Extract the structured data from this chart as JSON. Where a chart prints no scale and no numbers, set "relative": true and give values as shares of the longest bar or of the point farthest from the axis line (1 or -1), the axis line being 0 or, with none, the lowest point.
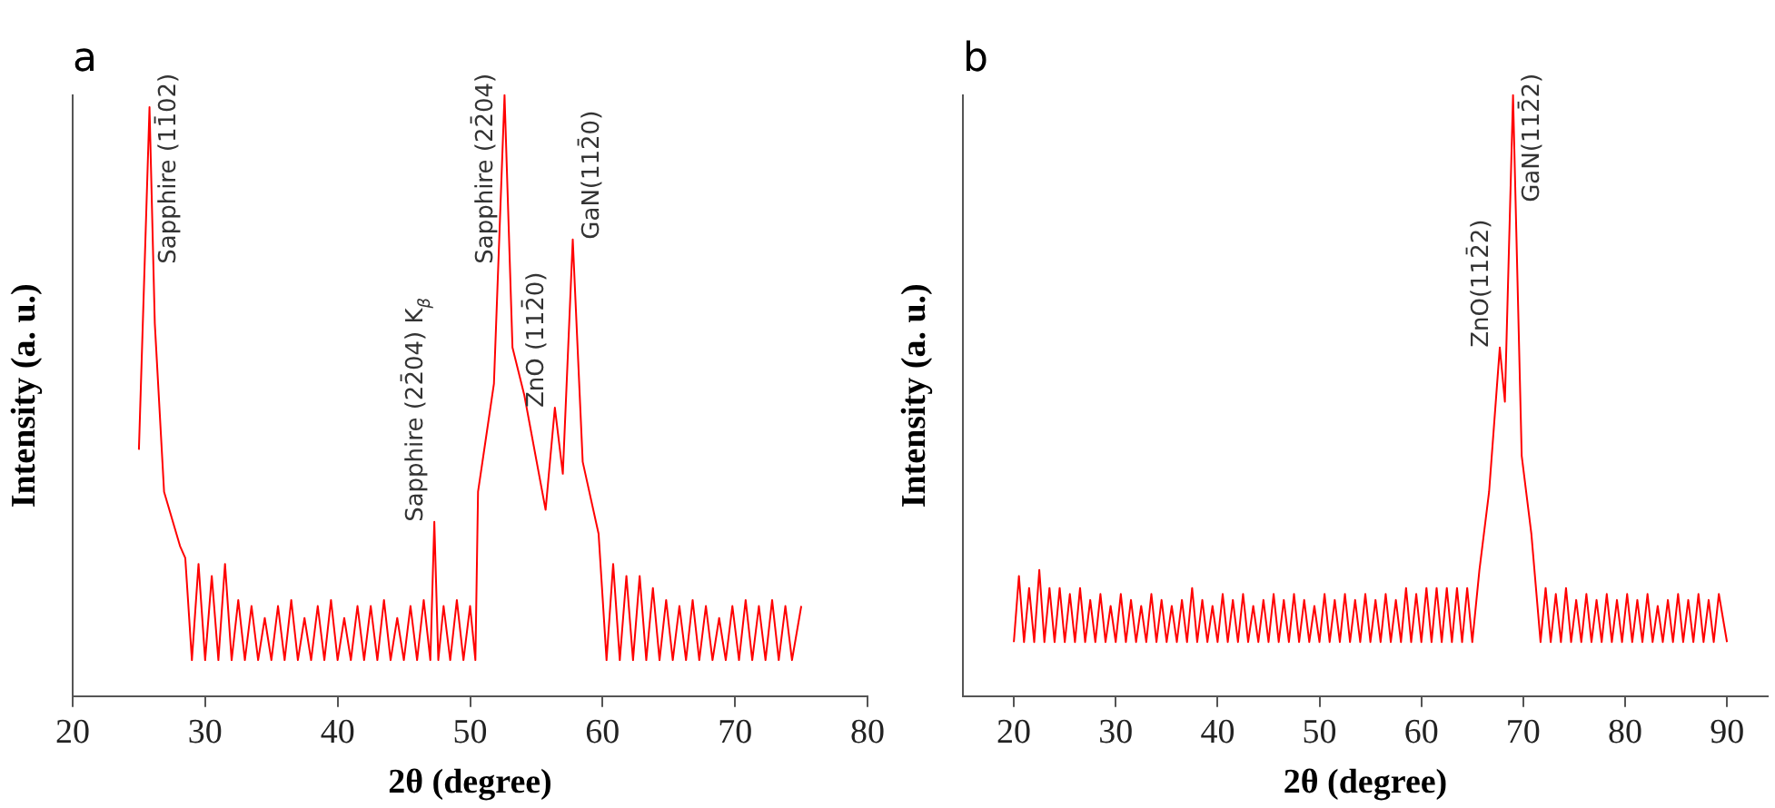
{
  "chart_data": [
    {
      "type": "line",
      "title": "a",
      "xlabel": "2θ (degree)",
      "ylabel": "Intensity (a. u.)",
      "relative": true,
      "legend": false,
      "grid": false,
      "xlim": [
        20,
        80
      ],
      "xticks": [
        20,
        30,
        40,
        50,
        60,
        70,
        80
      ],
      "annotations": [
        {
          "text": "Sapphire (11̄02)",
          "x": 25.8,
          "y": 0.98
        },
        {
          "text": "Sapphire (22̄04) K$_{β}$",
          "x": 47.3,
          "y": 0.29
        },
        {
          "text": "Sapphire (22̄04)",
          "x": 52.6,
          "y": 1
        },
        {
          "text": "ZnO (112̄0)",
          "x": 56.4,
          "y": 0.48
        },
        {
          "text": "GaN(112̄0)",
          "x": 57.75,
          "y": 0.76
        }
      ],
      "series": [
        {
          "color": "#ff0000",
          "x": [
            25.0,
            25.8,
            26.2,
            26.9,
            28.1,
            28.5,
            29.0,
            29.5,
            30.0,
            30.5,
            31.0,
            31.5,
            32.0,
            32.5,
            33.0,
            33.5,
            34.0,
            34.5,
            35.0,
            35.5,
            36.0,
            36.5,
            37.0,
            37.5,
            38.0,
            38.5,
            39.0,
            39.5,
            40.0,
            40.5,
            41.0,
            41.5,
            42.0,
            42.5,
            43.0,
            43.5,
            44.0,
            44.5,
            45.0,
            45.5,
            46.0,
            46.5,
            47.0,
            47.3,
            47.6,
            48.0,
            48.5,
            49.0,
            49.5,
            50.0,
            50.4,
            50.6,
            51.0,
            51.8,
            52.6,
            53.2,
            54.1,
            55.7,
            56.4,
            57.0,
            57.75,
            58.5,
            59.7,
            60.3,
            60.8,
            61.3,
            61.8,
            62.3,
            62.8,
            63.3,
            63.8,
            64.3,
            64.8,
            65.3,
            65.8,
            66.3,
            66.8,
            67.3,
            67.8,
            68.3,
            68.8,
            69.3,
            69.8,
            70.3,
            70.8,
            71.3,
            71.8,
            72.3,
            72.8,
            73.3,
            73.8,
            74.3,
            75.0
          ],
          "values": [
            0.41,
            0.98,
            0.62,
            0.34,
            0.25,
            0.23,
            0.06,
            0.22,
            0.06,
            0.2,
            0.06,
            0.22,
            0.06,
            0.16,
            0.06,
            0.15,
            0.06,
            0.13,
            0.06,
            0.15,
            0.06,
            0.16,
            0.06,
            0.13,
            0.06,
            0.15,
            0.06,
            0.16,
            0.06,
            0.13,
            0.06,
            0.15,
            0.06,
            0.15,
            0.06,
            0.16,
            0.06,
            0.13,
            0.06,
            0.15,
            0.06,
            0.16,
            0.06,
            0.29,
            0.06,
            0.15,
            0.06,
            0.16,
            0.06,
            0.15,
            0.06,
            0.34,
            0.4,
            0.52,
            1,
            0.58,
            0.5,
            0.31,
            0.48,
            0.37,
            0.76,
            0.39,
            0.27,
            0.06,
            0.22,
            0.06,
            0.2,
            0.06,
            0.2,
            0.06,
            0.18,
            0.06,
            0.16,
            0.06,
            0.15,
            0.06,
            0.16,
            0.06,
            0.15,
            0.06,
            0.13,
            0.06,
            0.15,
            0.06,
            0.16,
            0.06,
            0.15,
            0.06,
            0.16,
            0.06,
            0.15,
            0.06,
            0.15
          ]
        }
      ]
    },
    {
      "type": "line",
      "title": "b",
      "xlabel": "2θ (degree)",
      "ylabel": "Intensity (a. u.)",
      "relative": true,
      "legend": false,
      "grid": false,
      "xlim": [
        15,
        94
      ],
      "xticks": [
        20,
        30,
        40,
        50,
        60,
        70,
        80,
        90
      ],
      "annotations": [
        {
          "text": "ZnO(112̄2)",
          "x": 67.7,
          "y": 0.58
        },
        {
          "text": "GaN(112̄2)",
          "x": 69.0,
          "y": 1
        }
      ],
      "series": [
        {
          "color": "#ff0000",
          "x": [
            20.0,
            20.5,
            21.0,
            21.5,
            22.0,
            22.5,
            23.0,
            23.5,
            24.0,
            24.5,
            25.0,
            25.5,
            26.0,
            26.5,
            27.0,
            27.5,
            28.0,
            28.5,
            29.0,
            29.5,
            30.0,
            30.5,
            31.0,
            31.5,
            32.0,
            32.5,
            33.0,
            33.5,
            34.0,
            34.5,
            35.0,
            35.5,
            36.0,
            36.5,
            37.0,
            37.5,
            38.0,
            38.5,
            39.0,
            39.5,
            40.0,
            40.5,
            41.0,
            41.5,
            42.0,
            42.5,
            43.0,
            43.5,
            44.0,
            44.5,
            45.0,
            45.5,
            46.0,
            46.5,
            47.0,
            47.5,
            48.0,
            48.5,
            49.0,
            49.5,
            50.0,
            50.5,
            51.0,
            51.5,
            52.0,
            52.5,
            53.0,
            53.5,
            54.0,
            54.5,
            55.0,
            55.5,
            56.0,
            56.5,
            57.0,
            57.5,
            58.0,
            58.5,
            59.0,
            59.5,
            60.0,
            60.5,
            61.0,
            61.5,
            62.0,
            62.5,
            63.0,
            63.5,
            64.0,
            64.5,
            65.0,
            65.7,
            66.65,
            67.7,
            68.2,
            69.0,
            69.85,
            70.8,
            71.7,
            72.2,
            72.7,
            73.2,
            73.7,
            74.2,
            74.7,
            75.2,
            75.7,
            76.2,
            76.7,
            77.2,
            77.7,
            78.2,
            78.7,
            79.2,
            79.7,
            80.2,
            80.7,
            81.2,
            81.7,
            82.2,
            82.7,
            83.2,
            83.7,
            84.2,
            84.7,
            85.2,
            85.7,
            86.2,
            86.7,
            87.2,
            87.7,
            88.2,
            88.7,
            89.2,
            90.0
          ],
          "values": [
            0.09,
            0.2,
            0.09,
            0.18,
            0.09,
            0.21,
            0.09,
            0.18,
            0.09,
            0.18,
            0.09,
            0.17,
            0.09,
            0.18,
            0.09,
            0.16,
            0.09,
            0.17,
            0.09,
            0.15,
            0.09,
            0.17,
            0.09,
            0.16,
            0.09,
            0.15,
            0.09,
            0.17,
            0.09,
            0.16,
            0.09,
            0.15,
            0.09,
            0.16,
            0.09,
            0.18,
            0.09,
            0.16,
            0.09,
            0.15,
            0.09,
            0.17,
            0.09,
            0.16,
            0.09,
            0.17,
            0.09,
            0.15,
            0.09,
            0.16,
            0.09,
            0.17,
            0.09,
            0.16,
            0.09,
            0.17,
            0.09,
            0.16,
            0.09,
            0.15,
            0.09,
            0.17,
            0.09,
            0.16,
            0.09,
            0.17,
            0.09,
            0.16,
            0.09,
            0.17,
            0.09,
            0.16,
            0.09,
            0.17,
            0.09,
            0.16,
            0.09,
            0.18,
            0.09,
            0.17,
            0.09,
            0.18,
            0.09,
            0.18,
            0.09,
            0.18,
            0.09,
            0.18,
            0.09,
            0.18,
            0.09,
            0.21,
            0.34,
            0.58,
            0.49,
            1,
            0.4,
            0.27,
            0.09,
            0.18,
            0.09,
            0.17,
            0.09,
            0.18,
            0.09,
            0.16,
            0.09,
            0.17,
            0.09,
            0.16,
            0.09,
            0.17,
            0.09,
            0.16,
            0.09,
            0.17,
            0.09,
            0.16,
            0.09,
            0.17,
            0.09,
            0.15,
            0.09,
            0.16,
            0.09,
            0.17,
            0.09,
            0.16,
            0.09,
            0.17,
            0.09,
            0.16,
            0.09,
            0.17,
            0.09
          ]
        }
      ]
    }
  ]
}
